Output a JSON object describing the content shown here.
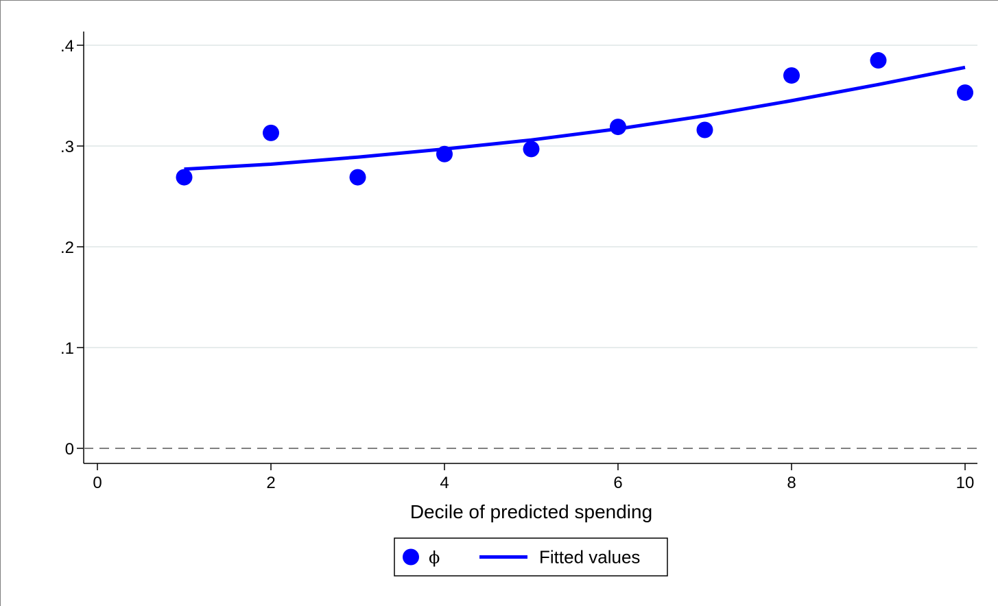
{
  "chart_data": {
    "type": "scatter",
    "title": "",
    "xlabel": "Decile of predicted spending",
    "ylabel": "",
    "xlim": [
      0,
      10
    ],
    "ylim": [
      0,
      0.4
    ],
    "x_ticks": [
      0,
      2,
      4,
      6,
      8,
      10
    ],
    "x_tick_labels": [
      "0",
      "2",
      "4",
      "6",
      "8",
      "10"
    ],
    "y_ticks": [
      0,
      0.1,
      0.2,
      0.3,
      0.4
    ],
    "y_tick_labels": [
      "0",
      ".1",
      ".2",
      ".3",
      ".4"
    ],
    "grid": "horizontal",
    "reference_line": {
      "y": 0,
      "style": "dashed",
      "color": "#808080"
    },
    "series": [
      {
        "name": "ϕ",
        "kind": "scatter",
        "color": "#0000ff",
        "x": [
          1,
          2,
          3,
          4,
          5,
          6,
          7,
          8,
          9,
          10
        ],
        "y": [
          0.269,
          0.313,
          0.269,
          0.292,
          0.297,
          0.319,
          0.316,
          0.37,
          0.385,
          0.353
        ]
      },
      {
        "name": "Fitted values",
        "kind": "line",
        "color": "#0000ff",
        "x": [
          1,
          2,
          3,
          4,
          5,
          6,
          7,
          8,
          9,
          10
        ],
        "y": [
          0.277,
          0.282,
          0.289,
          0.297,
          0.306,
          0.317,
          0.33,
          0.345,
          0.361,
          0.378
        ]
      }
    ],
    "legend_position": "bottom-center"
  }
}
